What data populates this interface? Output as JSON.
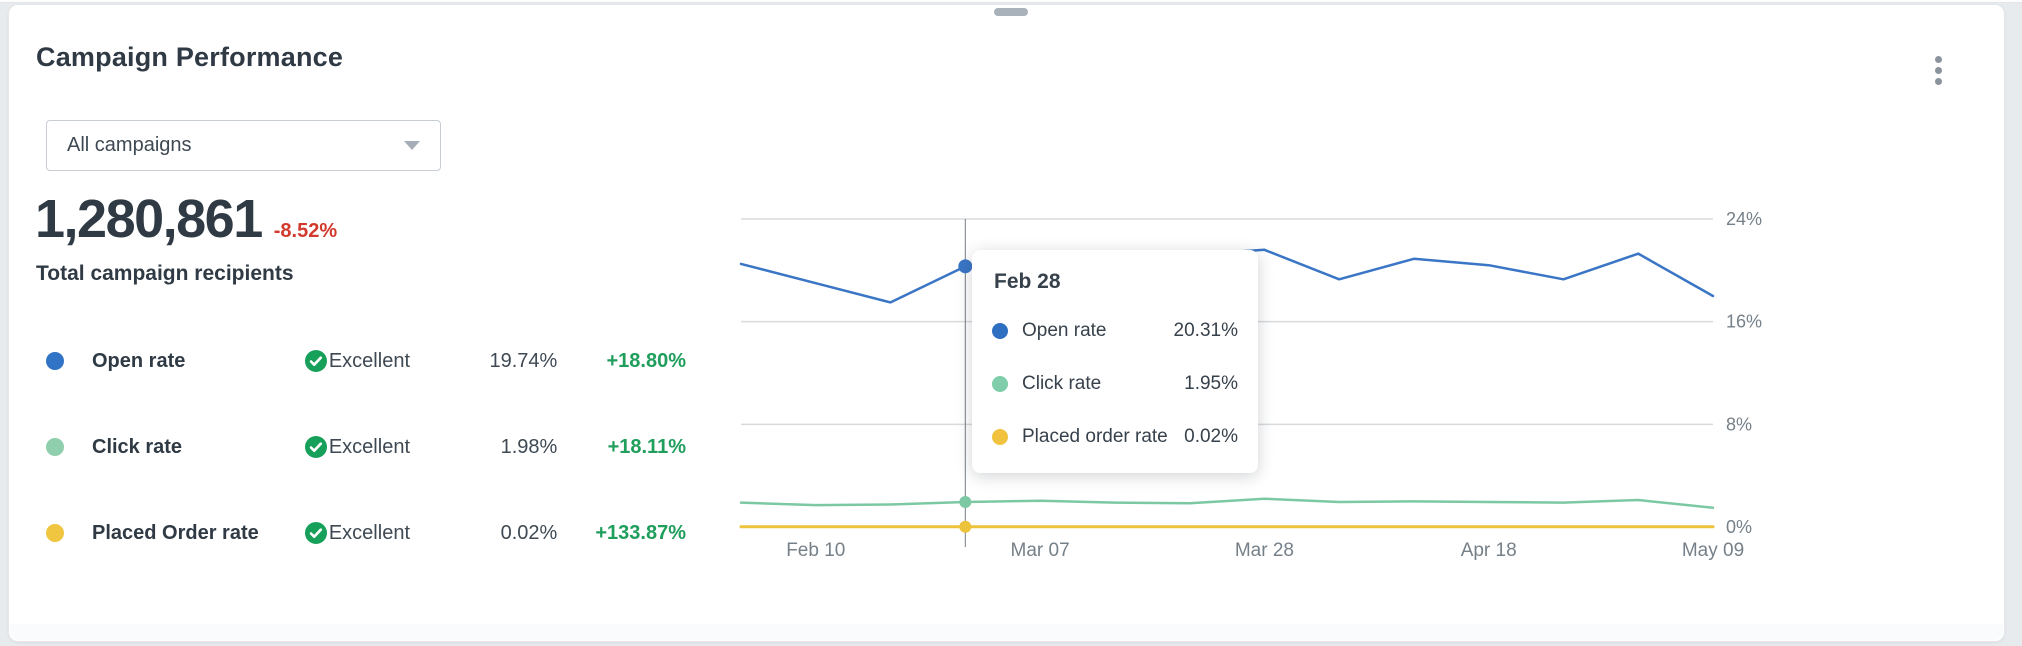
{
  "header": {
    "title": "Campaign Performance",
    "menu_icon": "kebab-menu"
  },
  "filter": {
    "value": "All campaigns"
  },
  "summary": {
    "value": "1,280,861",
    "change": "-8.52%",
    "label": "Total campaign recipients"
  },
  "palette": {
    "open_rate_blue": "#3173c4",
    "click_rate_green": "#8fcfad",
    "placed_order_yellow": "#f0c53f",
    "status_green": "#17a05a",
    "positive_green": "#1f9e5c",
    "negative_red": "#d23a2e",
    "grid_gray": "#d8dbde",
    "axis_label_gray": "#768089",
    "crosshair_gray": "#747d87"
  },
  "metrics": [
    {
      "label": "Open rate",
      "dot_color": "#3173c4",
      "status": "Excellent",
      "value": "19.74%",
      "change": "+18.80%"
    },
    {
      "label": "Click rate",
      "dot_color": "#8fcfad",
      "status": "Excellent",
      "value": "1.98%",
      "change": "+18.11%"
    },
    {
      "label": "Placed Order rate",
      "dot_color": "#f0c53f",
      "status": "Excellent",
      "value": "0.02%",
      "change": "+133.87%"
    }
  ],
  "tooltip": {
    "date": "Feb 28",
    "rows": [
      {
        "label": "Open rate",
        "value": "20.31%",
        "color": "#2e6fc2"
      },
      {
        "label": "Click rate",
        "value": "1.95%",
        "color": "#7fcdaa"
      },
      {
        "label": "Placed order rate",
        "value": "0.02%",
        "color": "#f0c23d"
      }
    ]
  },
  "chart_data": {
    "type": "line",
    "title": "",
    "xlabel": "",
    "ylabel": "",
    "ylim": [
      0,
      24
    ],
    "grid": true,
    "legend_position": "none",
    "highlight_index": 3,
    "highlight_date": "Feb 28",
    "y_ticks": [
      {
        "value": 24,
        "label": "24%"
      },
      {
        "value": 16,
        "label": "16%"
      },
      {
        "value": 8,
        "label": "8%"
      },
      {
        "value": 0,
        "label": "0%"
      }
    ],
    "x_ticks": [
      {
        "index": 1,
        "label": "Feb 10"
      },
      {
        "index": 4,
        "label": "Mar 07"
      },
      {
        "index": 7,
        "label": "Mar 28"
      },
      {
        "index": 10,
        "label": "Apr 18"
      },
      {
        "index": 13,
        "label": "May 09"
      }
    ],
    "series": [
      {
        "name": "Open rate",
        "color": "#3a76c5",
        "width": 2.5,
        "dot_r": 7,
        "values": [
          20.5,
          19.0,
          17.5,
          20.31,
          20.8,
          20.0,
          21.2,
          21.6,
          19.3,
          20.9,
          20.4,
          19.3,
          21.3,
          18.0
        ]
      },
      {
        "name": "Click rate",
        "color": "#7cc8a3",
        "width": 2.5,
        "dot_r": 6,
        "values": [
          1.9,
          1.7,
          1.75,
          1.95,
          2.05,
          1.9,
          1.85,
          2.2,
          1.95,
          2.0,
          1.95,
          1.9,
          2.1,
          1.5
        ]
      },
      {
        "name": "Placed order rate",
        "color": "#ecc33b",
        "width": 3,
        "dot_r": 6,
        "values": [
          0.02,
          0.02,
          0.02,
          0.02,
          0.02,
          0.02,
          0.02,
          0.02,
          0.02,
          0.02,
          0.02,
          0.02,
          0.02,
          0.02
        ]
      }
    ]
  }
}
